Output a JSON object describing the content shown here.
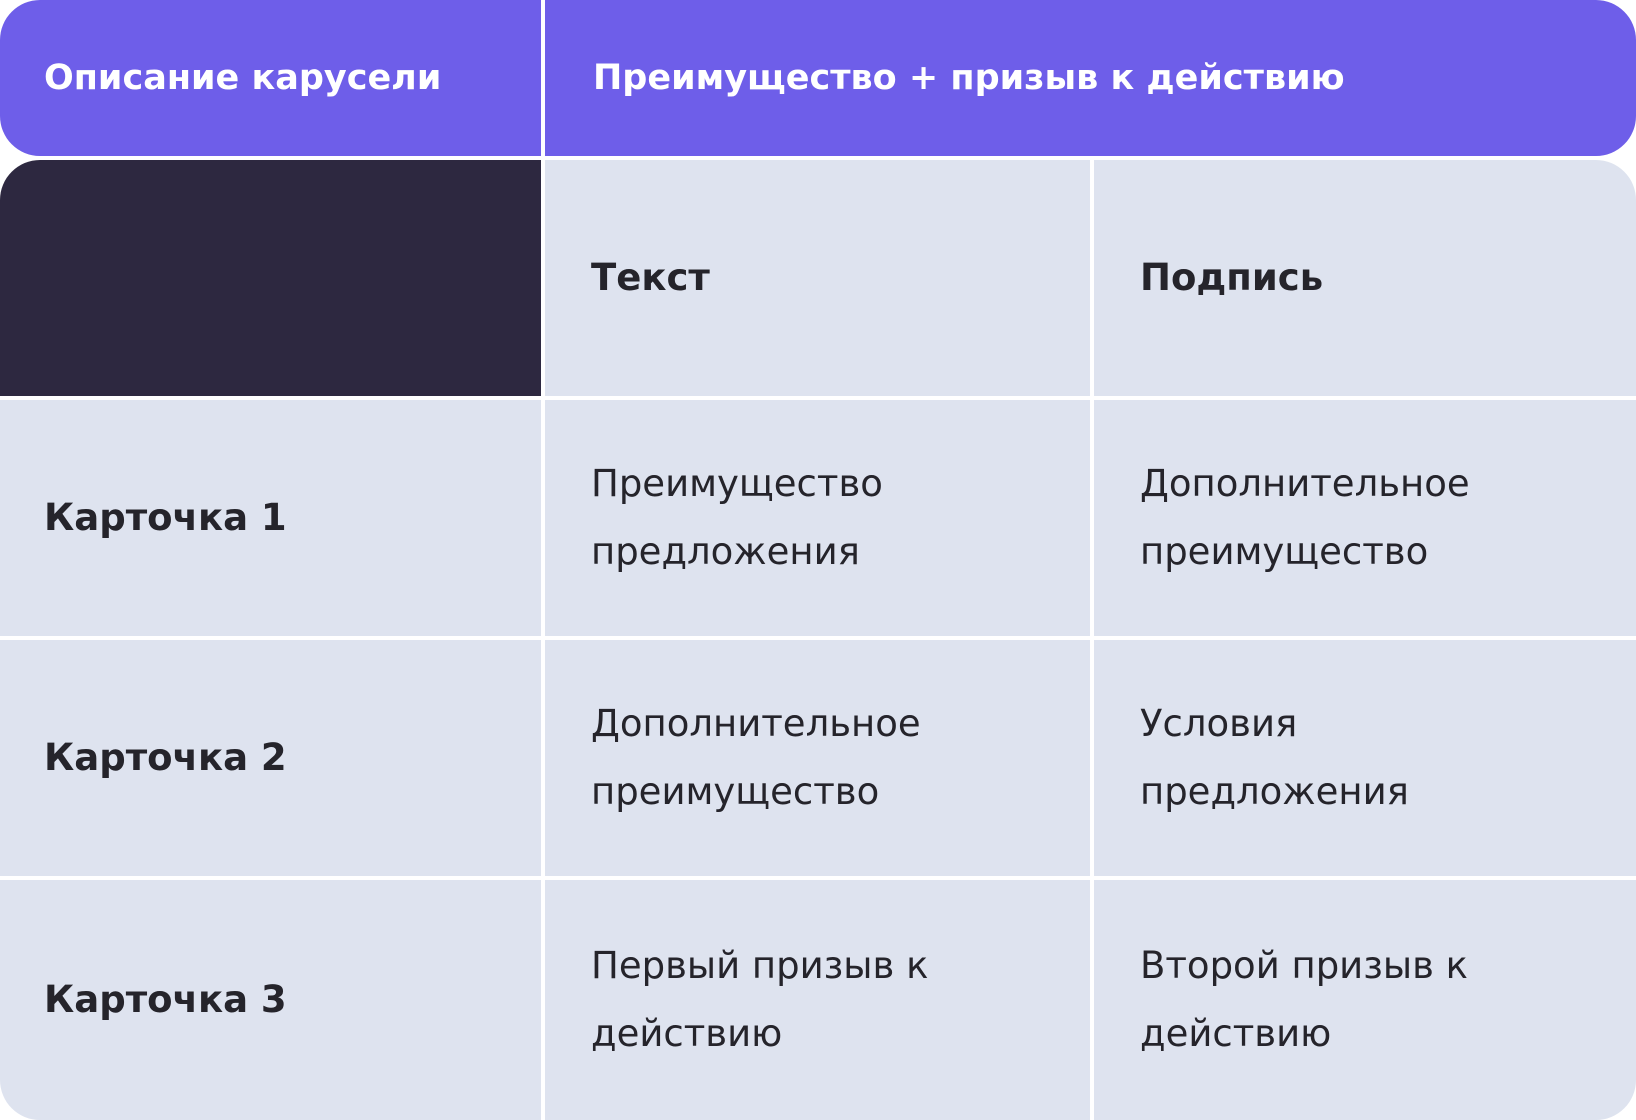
{
  "colors": {
    "header": "#6e5ee9",
    "corner": "#2d2840",
    "cell": "#dee3ef",
    "text": "#25242b"
  },
  "header": {
    "left": "Описание карусели",
    "right": "Преимущество + призыв к действию"
  },
  "columns": [
    "Текст",
    "Подпись"
  ],
  "rows": [
    {
      "label": "Карточка 1",
      "text": "Преимущество предложения",
      "caption": "Дополнительное преимущество"
    },
    {
      "label": "Карточка 2",
      "text": "Дополнительное преимущество",
      "caption": "Условия предложения"
    },
    {
      "label": "Карточка 3",
      "text": "Первый призыв к действию",
      "caption": "Второй призыв к действию"
    }
  ]
}
